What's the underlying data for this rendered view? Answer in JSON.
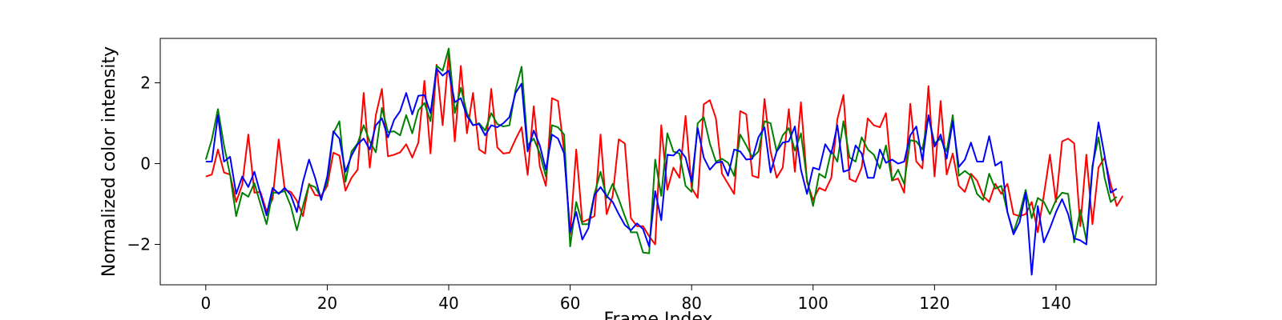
{
  "chart_data": {
    "type": "line",
    "xlabel": "Frame Index",
    "ylabel": "Normalized color intensity",
    "xlim": [
      -7.5,
      156.5
    ],
    "ylim": [
      -3.0,
      3.1
    ],
    "xticks": [
      0,
      20,
      40,
      60,
      80,
      100,
      120,
      140
    ],
    "yticks": [
      -2,
      0,
      2
    ],
    "grid": false,
    "x_start": 0,
    "series": [
      {
        "color": "#ff0000",
        "values": [
          -0.32,
          -0.27,
          0.35,
          -0.22,
          -0.27,
          -0.95,
          -0.52,
          0.72,
          -0.72,
          -0.7,
          -1.18,
          -0.88,
          0.6,
          -0.65,
          -0.7,
          -0.92,
          -1.3,
          -0.5,
          -0.78,
          -0.8,
          -0.55,
          0.27,
          0.2,
          -0.67,
          -0.35,
          -0.15,
          1.75,
          -0.1,
          1.2,
          1.85,
          0.18,
          0.22,
          0.28,
          0.48,
          0.15,
          0.52,
          2.05,
          0.25,
          2.45,
          0.95,
          2.72,
          0.55,
          2.42,
          0.75,
          1.75,
          0.35,
          0.25,
          1.85,
          0.4,
          0.25,
          0.27,
          0.6,
          0.9,
          -0.28,
          1.42,
          -0.07,
          -0.55,
          1.62,
          1.55,
          0.3,
          -1.75,
          0.35,
          -1.45,
          -1.38,
          -1.3,
          0.72,
          -1.25,
          -0.8,
          0.6,
          0.5,
          -1.35,
          -1.55,
          -1.55,
          -1.8,
          -2.0,
          0.95,
          -0.65,
          -0.1,
          -0.35,
          1.18,
          -0.6,
          -0.85,
          1.47,
          1.57,
          1.12,
          -0.25,
          -0.5,
          -0.75,
          1.3,
          1.22,
          -0.3,
          -0.35,
          1.6,
          0.3,
          -0.35,
          -0.1,
          1.35,
          -0.2,
          1.52,
          -0.45,
          -0.9,
          -0.6,
          -0.67,
          -0.35,
          1.1,
          1.7,
          -0.38,
          -0.45,
          -0.1,
          1.12,
          0.95,
          0.9,
          1.25,
          -0.42,
          -0.37,
          -0.72,
          1.48,
          0.05,
          -0.12,
          1.92,
          -0.32,
          1.55,
          -0.27,
          0.25,
          -0.55,
          -0.7,
          -0.25,
          -0.42,
          -0.8,
          -0.95,
          -0.5,
          -0.75,
          -0.5,
          -1.25,
          -1.3,
          -1.25,
          -0.95,
          -1.7,
          -0.78,
          0.22,
          -0.95,
          0.55,
          0.62,
          0.5,
          -1.55,
          0.22,
          -1.5,
          -0.1,
          0.15,
          -0.5,
          -1.05,
          -0.8
        ]
      },
      {
        "color": "#008000",
        "values": [
          0.1,
          0.6,
          1.35,
          0.45,
          -0.28,
          -1.3,
          -0.72,
          -0.82,
          -0.48,
          -1.0,
          -1.5,
          -0.72,
          -0.72,
          -0.68,
          -1.05,
          -1.65,
          -1.05,
          -0.52,
          -0.58,
          -0.85,
          -0.45,
          0.75,
          1.05,
          -0.45,
          0.3,
          0.5,
          0.95,
          0.55,
          0.28,
          1.38,
          0.78,
          0.8,
          0.7,
          1.2,
          0.75,
          1.32,
          1.5,
          1.05,
          2.42,
          2.3,
          2.85,
          1.25,
          1.88,
          1.25,
          0.95,
          1.0,
          0.82,
          1.25,
          0.98,
          0.92,
          0.95,
          1.82,
          2.4,
          0.45,
          0.62,
          0.25,
          -0.32,
          0.95,
          0.9,
          0.72,
          -2.05,
          -0.95,
          -1.5,
          -1.5,
          -0.75,
          -0.2,
          -0.85,
          -0.5,
          -0.88,
          -1.3,
          -1.7,
          -1.7,
          -2.2,
          -2.22,
          0.1,
          -0.8,
          0.75,
          0.3,
          0.25,
          -0.55,
          -0.7,
          1.0,
          1.15,
          0.5,
          0.05,
          0.12,
          0.02,
          -0.3,
          0.72,
          0.45,
          0.15,
          0.3,
          1.05,
          1.0,
          0.3,
          0.7,
          0.88,
          0.32,
          0.75,
          -0.4,
          -1.05,
          -0.25,
          -0.35,
          0.32,
          0.05,
          1.05,
          0.15,
          0.05,
          0.65,
          0.35,
          0.22,
          -0.12,
          0.45,
          -0.42,
          -0.15,
          -0.5,
          0.58,
          0.55,
          0.35,
          1.18,
          0.5,
          0.62,
          0.3,
          1.2,
          -0.3,
          -0.18,
          -0.3,
          -0.75,
          -0.9,
          -0.25,
          -0.62,
          -0.55,
          -1.2,
          -1.7,
          -1.25,
          -0.65,
          -1.35,
          -0.85,
          -0.95,
          -1.25,
          -0.9,
          -0.72,
          -0.75,
          -1.95,
          -1.15,
          -1.9,
          -0.05,
          0.65,
          -0.35,
          -0.95,
          -0.82
        ]
      },
      {
        "color": "#0000ff",
        "values": [
          0.05,
          0.05,
          1.2,
          0.05,
          0.17,
          -0.75,
          -0.32,
          -0.58,
          -0.2,
          -0.75,
          -1.28,
          -0.6,
          -0.75,
          -0.6,
          -0.78,
          -1.2,
          -0.45,
          0.1,
          -0.35,
          -0.9,
          -0.32,
          0.8,
          0.62,
          -0.2,
          0.2,
          0.48,
          0.62,
          0.35,
          0.95,
          1.12,
          0.65,
          1.08,
          1.3,
          1.75,
          1.22,
          1.68,
          1.7,
          1.25,
          2.35,
          2.18,
          2.3,
          1.52,
          1.62,
          1.18,
          0.95,
          0.98,
          0.7,
          0.95,
          0.9,
          1.0,
          1.15,
          1.75,
          1.98,
          0.3,
          0.82,
          0.45,
          -0.15,
          0.72,
          0.62,
          0.25,
          -1.7,
          -1.2,
          -1.88,
          -1.6,
          -0.78,
          -0.58,
          -0.8,
          -0.95,
          -1.25,
          -1.52,
          -1.65,
          -1.48,
          -1.62,
          -2.05,
          -0.68,
          -1.4,
          0.22,
          0.2,
          0.35,
          0.15,
          -0.45,
          0.88,
          0.15,
          -0.15,
          0.02,
          0.05,
          -0.3,
          0.35,
          0.3,
          0.1,
          0.12,
          0.65,
          0.9,
          -0.22,
          0.3,
          0.52,
          0.55,
          0.92,
          -0.15,
          -0.75,
          -0.1,
          -0.15,
          0.48,
          0.25,
          0.95,
          -0.2,
          -0.15,
          0.45,
          0.25,
          -0.35,
          -0.35,
          0.35,
          0.02,
          0.1,
          0.0,
          0.05,
          0.7,
          0.92,
          0.08,
          1.2,
          0.42,
          0.72,
          0.12,
          1.05,
          -0.08,
          0.1,
          0.52,
          0.05,
          0.05,
          0.68,
          -0.05,
          0.05,
          -1.2,
          -1.75,
          -1.45,
          -0.72,
          -2.75,
          -1.05,
          -1.95,
          -1.6,
          -1.2,
          -0.88,
          -1.25,
          -1.85,
          -1.9,
          -2.0,
          -0.12,
          1.02,
          0.2,
          -0.72,
          -0.62
        ]
      }
    ]
  }
}
